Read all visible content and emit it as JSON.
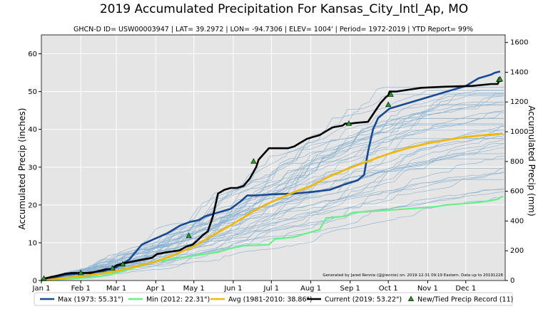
{
  "chart_data": {
    "type": "line",
    "title": "2019 Accumulated Precipitation For Kansas_City_Intl_Ap, MO",
    "subtitle": "GHCN-D ID= USW00003947 | LAT= 39.2972 | LON= -94.7306 | ELEV= 1004' | Period= 1972-2019 |  YTD Report= 99%",
    "ylabel": "Accumulated Precip (inches)",
    "y2label": "Accumulated Precip (mm)",
    "credit": "Generated by Jared Rennie (@jjrennie) on: 2019-12-31 09:19 Eastern. Data up to 20191228",
    "x_domain": [
      1,
      366
    ],
    "ylim": [
      0,
      65
    ],
    "y2lim": [
      0,
      1651
    ],
    "x_ticks": [
      {
        "label": "Jan 1",
        "day": 1
      },
      {
        "label": "Feb 1",
        "day": 32
      },
      {
        "label": "Mar 1",
        "day": 60
      },
      {
        "label": "Apr 1",
        "day": 91
      },
      {
        "label": "May 1",
        "day": 121
      },
      {
        "label": "Jun 1",
        "day": 152
      },
      {
        "label": "Jul 1",
        "day": 182
      },
      {
        "label": "Aug 1",
        "day": 213
      },
      {
        "label": "Sep 1",
        "day": 244
      },
      {
        "label": "Oct 1",
        "day": 274
      },
      {
        "label": "Nov 1",
        "day": 305
      },
      {
        "label": "Dec 1",
        "day": 335
      }
    ],
    "y_ticks": [
      "0",
      "10",
      "20",
      "30",
      "40",
      "50",
      "60"
    ],
    "y2_ticks": [
      "0",
      "200",
      "400",
      "600",
      "800",
      "1000",
      "1200",
      "1400",
      "1600"
    ],
    "grid": true,
    "legend_position": "bottom",
    "colors": {
      "plot_bg": "#e5e5e5",
      "grid": "#ffffff",
      "history": "#2a7ab8",
      "max": "#174a93",
      "min": "#66f08a",
      "avg": "#f0b800",
      "current": "#000000",
      "record_marker": "#22a022"
    },
    "series": [
      {
        "name": "Max (1973:  55.31\")",
        "role": "max",
        "x": [
          1,
          8,
          20,
          35,
          50,
          60,
          70,
          80,
          90,
          100,
          110,
          118,
          125,
          130,
          140,
          150,
          158,
          163,
          170,
          182,
          200,
          215,
          228,
          240,
          250,
          255,
          258,
          260,
          262,
          266,
          275,
          300,
          320,
          335,
          345,
          355,
          358,
          362
        ],
        "y": [
          0,
          0.5,
          1.5,
          2.0,
          2.5,
          3.5,
          5.5,
          9.5,
          11.0,
          12.5,
          14.5,
          15.5,
          16.0,
          17.0,
          18.0,
          19.0,
          21.0,
          22.5,
          22.5,
          22.8,
          23.0,
          23.5,
          24.0,
          25.5,
          26.5,
          28.0,
          34.0,
          37.0,
          40.0,
          43.0,
          45.5,
          48.0,
          50.0,
          51.5,
          53.5,
          54.5,
          55.0,
          55.31
        ]
      },
      {
        "name": "Min (2012:  22.31\")",
        "role": "min",
        "x": [
          1,
          20,
          40,
          55,
          70,
          90,
          110,
          120,
          140,
          150,
          160,
          180,
          185,
          200,
          220,
          225,
          240,
          246,
          270,
          290,
          310,
          320,
          340,
          352,
          360,
          364
        ],
        "y": [
          0,
          0.4,
          0.8,
          1.5,
          3.0,
          5.0,
          6.0,
          6.5,
          7.5,
          8.5,
          9.2,
          9.5,
          11.0,
          11.5,
          13.5,
          16.5,
          17.0,
          18.0,
          18.5,
          19.0,
          19.5,
          20.0,
          20.5,
          21.0,
          21.5,
          22.31
        ]
      },
      {
        "name": "Avg (1981-2010:  38.86\")",
        "role": "avg",
        "x": [
          1,
          15,
          31,
          46,
          60,
          75,
          91,
          106,
          121,
          136,
          152,
          167,
          182,
          197,
          213,
          228,
          244,
          259,
          274,
          289,
          305,
          320,
          335,
          350,
          364
        ],
        "y": [
          0,
          0.5,
          1.1,
          1.7,
          2.5,
          3.7,
          5.0,
          6.9,
          9.0,
          12.0,
          15.0,
          18.2,
          20.8,
          23.0,
          25.0,
          27.6,
          29.8,
          31.7,
          33.5,
          35.0,
          36.3,
          37.2,
          38.0,
          38.5,
          38.86
        ]
      },
      {
        "name": "Current (2019:  53.22\")",
        "role": "current",
        "x": [
          1,
          3,
          10,
          20,
          25,
          32,
          40,
          46,
          52,
          56,
          60,
          65,
          80,
          88,
          92,
          100,
          110,
          115,
          120,
          125,
          128,
          132,
          136,
          140,
          145,
          150,
          155,
          160,
          165,
          170,
          172,
          180,
          185,
          190,
          195,
          200,
          205,
          210,
          215,
          220,
          225,
          230,
          238,
          240,
          244,
          248,
          258,
          262,
          265,
          268,
          272,
          274,
          275,
          280,
          290,
          300,
          320,
          340,
          355,
          360,
          362
        ],
        "y": [
          0,
          0.5,
          1.0,
          1.8,
          2.0,
          2.0,
          2.0,
          2.5,
          3.0,
          3.0,
          4.0,
          4.5,
          5.5,
          6.0,
          7.0,
          7.5,
          8.0,
          9.0,
          9.5,
          11.0,
          12.0,
          13.0,
          17.0,
          23.0,
          24.0,
          24.5,
          24.5,
          25.0,
          27.0,
          30.0,
          32.0,
          35.0,
          35.0,
          35.0,
          35.0,
          35.5,
          36.5,
          37.5,
          38.0,
          38.5,
          39.5,
          40.5,
          41.0,
          41.5,
          41.5,
          41.7,
          42.0,
          44.0,
          45.5,
          47.0,
          48.5,
          49.0,
          50.0,
          50.0,
          50.5,
          51.0,
          51.3,
          51.5,
          52.0,
          52.0,
          53.22
        ]
      }
    ],
    "records": {
      "name": "New/Tied Precip Record (11)",
      "x": [
        3,
        32,
        57,
        65,
        117,
        168,
        243,
        274,
        276,
        361,
        362
      ],
      "y": [
        0.5,
        2.0,
        3.2,
        4.3,
        11.8,
        31.5,
        41.5,
        46.5,
        49.2,
        53.1,
        53.22
      ]
    }
  }
}
